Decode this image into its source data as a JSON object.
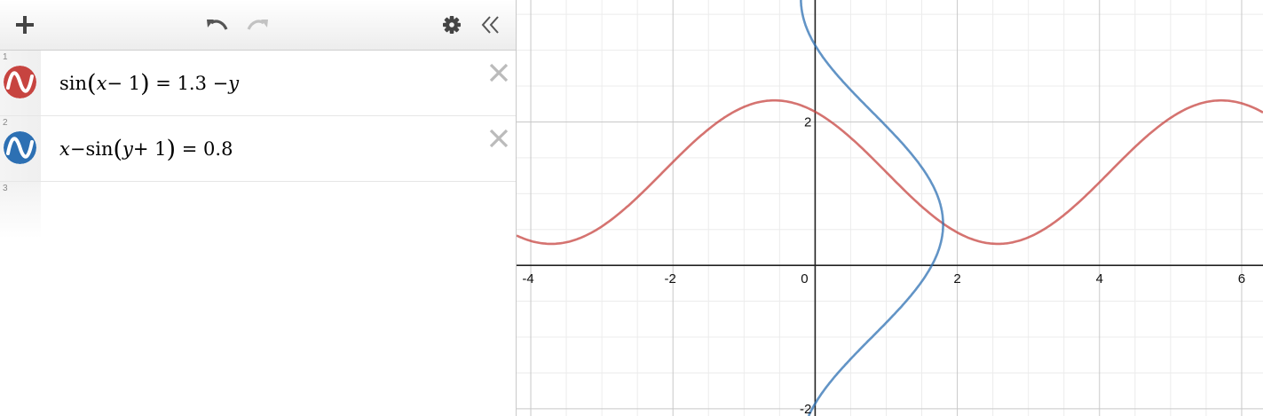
{
  "toolbar": {
    "add_icon": "plus-icon",
    "undo_icon": "undo-icon",
    "redo_icon": "redo-icon",
    "settings_icon": "gear-icon",
    "collapse_icon": "double-chevron-left-icon"
  },
  "expressions": [
    {
      "index": "1",
      "color": "#c74440",
      "latex": "\\sin\\left(x-1\\right)=1.3-y",
      "parts": {
        "fn": "sin",
        "var": "x",
        "op": " − 1",
        "rhs_num": "1.3 − ",
        "rhs_var": "y"
      }
    },
    {
      "index": "2",
      "color": "#2d70b3",
      "latex": "x-\\sin\\left(y+1\\right)=0.8",
      "parts": {
        "lhs_var": "x",
        "minus": " − ",
        "fn": "sin",
        "var": "y",
        "op": " + 1",
        "rhs": "0.8"
      }
    }
  ],
  "empty_row": {
    "index": "3"
  },
  "graph": {
    "x_ticks": [
      "-4",
      "-2",
      "0",
      "2",
      "4",
      "6"
    ],
    "y_ticks": [
      "2",
      "-2"
    ],
    "xlim": [
      -4.2,
      6.3
    ],
    "ylim": [
      -2.1,
      3.7
    ],
    "grid": true,
    "curve_colors": {
      "red": "#c74440",
      "blue": "#2d70b3"
    }
  }
}
